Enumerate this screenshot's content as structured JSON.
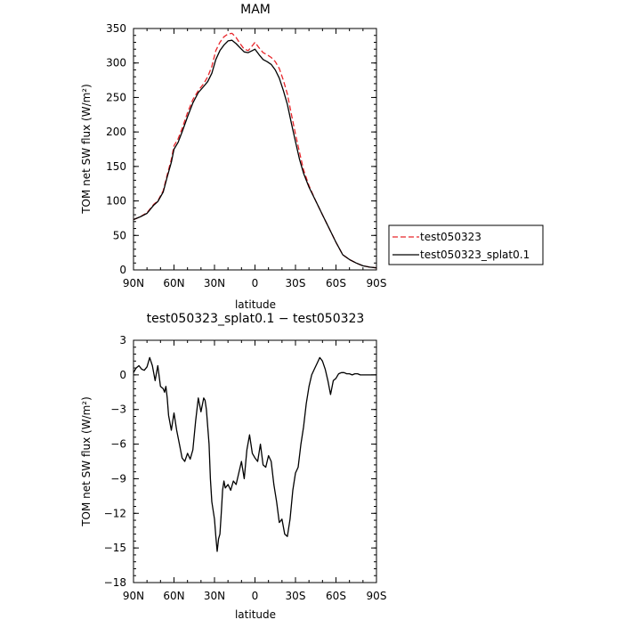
{
  "chart_data": [
    {
      "type": "line",
      "title": "MAM",
      "xlabel": "latitude",
      "ylabel": "TOM net SW flux (W/m²)",
      "xlim": [
        90,
        -90
      ],
      "ylim": [
        0,
        350
      ],
      "x_ticks": [
        90,
        60,
        30,
        0,
        -30,
        -60,
        -90
      ],
      "x_tick_labels": [
        "90N",
        "60N",
        "30N",
        "0",
        "30S",
        "60S",
        "90S"
      ],
      "y_ticks": [
        0,
        50,
        100,
        150,
        200,
        250,
        300,
        350
      ],
      "y_tick_labels": [
        "0",
        "50",
        "100",
        "150",
        "200",
        "250",
        "300",
        "350"
      ],
      "legend_position": "right",
      "series": [
        {
          "name": "test050323",
          "color": "#e8262b",
          "dash": "dashed",
          "x": [
            90,
            85,
            80,
            75,
            72,
            68,
            65,
            62,
            60,
            57,
            54,
            50,
            46,
            42,
            38,
            35,
            32,
            29,
            26,
            23,
            20,
            17,
            14,
            11,
            8,
            5,
            2,
            0,
            -3,
            -6,
            -9,
            -12,
            -15,
            -18,
            -21,
            -24,
            -27,
            -30,
            -33,
            -36,
            -40,
            -45,
            -50,
            -55,
            -60,
            -65,
            -70,
            -75,
            -80,
            -85,
            -90
          ],
          "y": [
            73,
            77,
            83,
            95,
            100,
            115,
            138,
            160,
            180,
            190,
            205,
            228,
            247,
            260,
            270,
            280,
            295,
            318,
            330,
            338,
            342,
            343,
            337,
            328,
            320,
            318,
            325,
            330,
            322,
            315,
            312,
            308,
            302,
            292,
            275,
            255,
            225,
            197,
            170,
            145,
            122,
            100,
            80,
            60,
            40,
            22,
            15,
            10,
            6,
            4,
            3
          ]
        },
        {
          "name": "test050323_splat0.1",
          "color": "#000000",
          "dash": "solid",
          "x": [
            90,
            85,
            80,
            75,
            72,
            68,
            65,
            62,
            60,
            57,
            54,
            50,
            46,
            42,
            38,
            35,
            32,
            29,
            26,
            23,
            20,
            17,
            14,
            11,
            8,
            5,
            2,
            0,
            -3,
            -6,
            -9,
            -12,
            -15,
            -18,
            -21,
            -24,
            -27,
            -30,
            -33,
            -36,
            -40,
            -45,
            -50,
            -55,
            -60,
            -65,
            -70,
            -75,
            -80,
            -85,
            -90
          ],
          "y": [
            73,
            77,
            82,
            94,
            99,
            113,
            135,
            156,
            175,
            185,
            200,
            222,
            242,
            257,
            266,
            273,
            285,
            305,
            318,
            326,
            332,
            333,
            328,
            322,
            316,
            315,
            318,
            320,
            312,
            305,
            302,
            298,
            290,
            278,
            260,
            240,
            212,
            186,
            160,
            140,
            120,
            100,
            80,
            60,
            40,
            22,
            15,
            10,
            6,
            4,
            3
          ]
        }
      ]
    },
    {
      "type": "line",
      "title": "test050323_splat0.1 − test050323",
      "xlabel": "latitude",
      "ylabel": "TOM net SW flux (W/m²)",
      "xlim": [
        90,
        -90
      ],
      "ylim": [
        -18,
        3
      ],
      "x_ticks": [
        90,
        60,
        30,
        0,
        -30,
        -60,
        -90
      ],
      "x_tick_labels": [
        "90N",
        "60N",
        "30N",
        "0",
        "30S",
        "60S",
        "90S"
      ],
      "y_ticks": [
        3,
        0,
        -3,
        -6,
        -9,
        -12,
        -15,
        -18
      ],
      "y_tick_labels": [
        "3",
        "0",
        "−3",
        "−6",
        "−9",
        "−12",
        "−15",
        "−18"
      ],
      "series": [
        {
          "color": "#000000",
          "x": [
            90,
            88,
            86,
            84,
            82,
            80,
            78,
            76,
            74,
            72,
            70,
            68,
            67,
            66,
            65,
            64,
            62,
            60,
            58,
            56,
            54,
            52,
            50,
            48,
            46,
            44,
            42,
            40,
            38,
            37,
            36,
            35,
            34,
            33,
            32,
            30,
            29,
            28,
            27,
            26,
            25,
            24,
            23,
            22,
            20,
            18,
            16,
            14,
            12,
            10,
            8,
            6,
            4,
            2,
            0,
            -2,
            -4,
            -6,
            -8,
            -10,
            -12,
            -14,
            -16,
            -18,
            -20,
            -22,
            -24,
            -26,
            -28,
            -30,
            -32,
            -34,
            -36,
            -38,
            -40,
            -42,
            -44,
            -46,
            -48,
            -50,
            -52,
            -54,
            -56,
            -58,
            -60,
            -62,
            -64,
            -66,
            -68,
            -70,
            -72,
            -74,
            -76,
            -78,
            -80,
            -82,
            -84,
            -86,
            -88,
            -90
          ],
          "y": [
            0.2,
            0.6,
            0.8,
            0.5,
            0.4,
            0.7,
            1.5,
            0.8,
            -0.5,
            0.8,
            -1.0,
            -1.2,
            -1.5,
            -1.0,
            -2.0,
            -3.5,
            -4.8,
            -3.3,
            -4.8,
            -6.0,
            -7.2,
            -7.5,
            -6.8,
            -7.3,
            -6.5,
            -4.0,
            -2.0,
            -3.2,
            -2.0,
            -2.2,
            -3.0,
            -4.5,
            -6.0,
            -9.0,
            -11.0,
            -12.5,
            -14.0,
            -15.3,
            -14.2,
            -13.8,
            -12.0,
            -10.0,
            -9.2,
            -9.8,
            -9.5,
            -10.0,
            -9.2,
            -9.5,
            -8.5,
            -7.5,
            -9.0,
            -6.5,
            -5.2,
            -6.8,
            -7.2,
            -7.5,
            -6.0,
            -7.8,
            -8.0,
            -7.0,
            -7.5,
            -9.5,
            -11.0,
            -12.8,
            -12.5,
            -13.8,
            -14.0,
            -12.5,
            -10.0,
            -8.5,
            -8.0,
            -6.0,
            -4.5,
            -2.5,
            -1.0,
            0.0,
            0.5,
            1.0,
            1.5,
            1.2,
            0.5,
            -0.5,
            -1.7,
            -0.5,
            -0.3,
            0.1,
            0.2,
            0.2,
            0.1,
            0.1,
            0.0,
            0.1,
            0.1,
            0.0,
            0.0,
            0.0,
            0.0,
            0.0,
            0.0,
            0.0
          ]
        }
      ]
    }
  ]
}
